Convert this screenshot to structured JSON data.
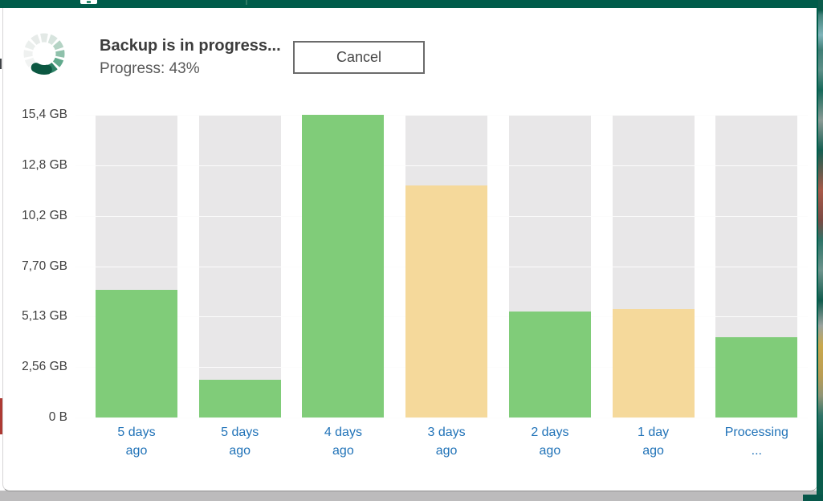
{
  "chrome": {
    "top_bar_color": "#005C4A",
    "app": "background-app-window-edge"
  },
  "header": {
    "title": "Backup is in progress...",
    "progress_label": "Progress: 43%",
    "progress_percent": 43,
    "cancel_label": "Cancel",
    "spinner_icon": "circular-progress-spinner",
    "spinner_segment_colors": [
      "#e3e9e6",
      "#d7e4de",
      "#b4d3c4",
      "#8fc1ab",
      "#60a98c",
      "#2d8166",
      "#0b5741",
      "#f1f3f2",
      "#eff1f0",
      "#ebefed",
      "#e7ebe9"
    ]
  },
  "chart_data": {
    "type": "bar",
    "title": "",
    "xlabel": "",
    "ylabel": "",
    "unit": "GB",
    "ylim": [
      0,
      15.4
    ],
    "grid": true,
    "legend": false,
    "ytick_labels": [
      "15,4 GB",
      "12,8 GB",
      "10,2 GB",
      "7,70 GB",
      "5,13 GB",
      "2,56 GB",
      "0 B"
    ],
    "categories": [
      [
        "5 days",
        "ago"
      ],
      [
        "5 days",
        "ago"
      ],
      [
        "4 days",
        "ago"
      ],
      [
        "3 days",
        "ago"
      ],
      [
        "2 days",
        "ago"
      ],
      [
        "1 day",
        "ago"
      ],
      [
        "Processing",
        "..."
      ]
    ],
    "series": [
      {
        "name": "restore-point-size",
        "values": [
          6.5,
          1.9,
          15.4,
          11.8,
          5.4,
          5.5,
          4.1
        ],
        "colors": [
          "#80CC79",
          "#80CC79",
          "#80CC79",
          "#F5D99B",
          "#80CC79",
          "#F5D99B",
          "#80CC79"
        ]
      }
    ],
    "background_bar_value": 15.4,
    "background_bar_color": "#E8E7E8",
    "xlabel_color": "#2173B8",
    "success_color": "#80CC79",
    "warning_color": "#F5D99B"
  }
}
